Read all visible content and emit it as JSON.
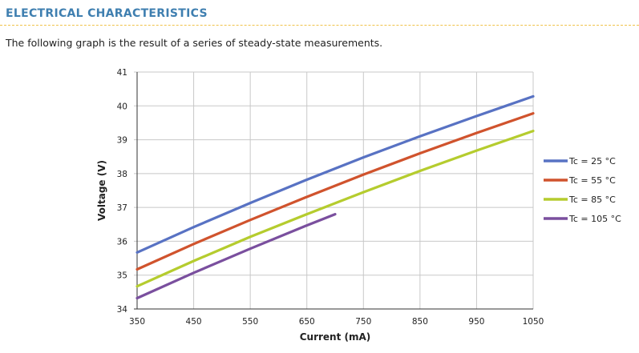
{
  "section": {
    "heading": "ELECTRICAL CHARACTERISTICS",
    "intro": "The following graph is the result of a series of steady-state measurements."
  },
  "colors": {
    "heading": "#3f7fb0",
    "rule": "#f0c24a",
    "grid": "#c8c8c8"
  },
  "chart_data": {
    "type": "line",
    "title": "",
    "xlabel": "Current (mA)",
    "ylabel": "Voltage (V)",
    "xlim": [
      350,
      1050
    ],
    "ylim": [
      34,
      41
    ],
    "xticks": [
      350,
      450,
      550,
      650,
      750,
      850,
      950,
      1050
    ],
    "yticks": [
      34,
      35,
      36,
      37,
      38,
      39,
      40,
      41
    ],
    "grid": true,
    "legend_position": "right",
    "series": [
      {
        "name": "Tc = 25 °C",
        "color": "#5872c3",
        "x": [
          350,
          450,
          550,
          650,
          750,
          850,
          950,
          1050
        ],
        "y": [
          35.67,
          36.42,
          37.13,
          37.82,
          38.48,
          39.1,
          39.7,
          40.28
        ]
      },
      {
        "name": "Tc = 55 °C",
        "color": "#d0532d",
        "x": [
          350,
          450,
          550,
          650,
          750,
          850,
          950,
          1050
        ],
        "y": [
          35.17,
          35.92,
          36.63,
          37.31,
          37.97,
          38.6,
          39.2,
          39.78
        ]
      },
      {
        "name": "Tc = 85 °C",
        "color": "#b5cc2e",
        "x": [
          350,
          450,
          550,
          650,
          750,
          850,
          950,
          1050
        ],
        "y": [
          34.67,
          35.42,
          36.13,
          36.8,
          37.45,
          38.08,
          38.68,
          39.26
        ]
      },
      {
        "name": "Tc = 105 °C",
        "color": "#7a4f9e",
        "x": [
          350,
          450,
          550,
          650,
          700
        ],
        "y": [
          34.32,
          35.07,
          35.78,
          36.47,
          36.8
        ]
      }
    ]
  }
}
